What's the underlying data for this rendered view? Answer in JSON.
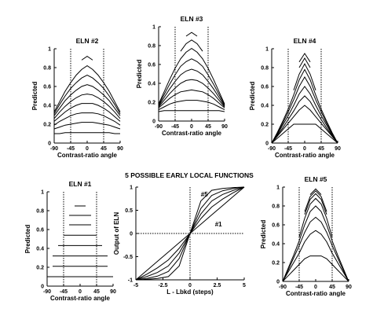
{
  "figure_title": "5 POSSIBLE EARLY LOCAL FUNCTIONS",
  "chart_data": [
    {
      "id": "eln2",
      "type": "line",
      "title": "ELN #2",
      "xlabel": "Contrast-ratio angle",
      "ylabel": "Predicted",
      "xlim": [
        -90,
        90
      ],
      "ylim": [
        0,
        1
      ],
      "xticks": [
        "-90",
        "-45",
        "0",
        "45",
        "90"
      ],
      "yticks": [
        "0",
        "0.2",
        "0.4",
        "0.6",
        "0.8",
        "1"
      ],
      "vlines": [
        -45,
        45
      ],
      "x": [
        -90,
        -75,
        -60,
        -45,
        -30,
        -15,
        0,
        15,
        30,
        45,
        60,
        75,
        90
      ],
      "series": [
        {
          "values": [
            0.1,
            0.1,
            0.11,
            0.11,
            0.11,
            0.11,
            0.11,
            0.11,
            0.11,
            0.11,
            0.11,
            0.1,
            0.1
          ]
        },
        {
          "values": [
            0.15,
            0.17,
            0.19,
            0.2,
            0.21,
            0.22,
            0.22,
            0.22,
            0.21,
            0.2,
            0.19,
            0.17,
            0.15
          ]
        },
        {
          "values": [
            0.19,
            0.23,
            0.26,
            0.29,
            0.31,
            0.32,
            0.32,
            0.32,
            0.31,
            0.29,
            0.26,
            0.23,
            0.19
          ]
        },
        {
          "values": [
            0.23,
            0.28,
            0.33,
            0.37,
            0.4,
            0.42,
            0.42,
            0.42,
            0.4,
            0.37,
            0.33,
            0.28,
            0.23
          ]
        },
        {
          "values": [
            0.26,
            0.33,
            0.39,
            0.44,
            0.48,
            0.51,
            0.52,
            0.51,
            0.48,
            0.44,
            0.39,
            0.33,
            0.26
          ]
        },
        {
          "values": [
            0.29,
            0.37,
            0.45,
            0.51,
            0.56,
            0.6,
            0.62,
            0.6,
            0.56,
            0.51,
            0.45,
            0.37,
            0.29
          ]
        },
        {
          "values": [
            0.31,
            0.41,
            0.5,
            0.58,
            0.64,
            0.69,
            0.72,
            0.69,
            0.64,
            0.58,
            0.5,
            0.41,
            0.31
          ]
        },
        {
          "values": [
            0.33,
            0.44,
            0.55,
            0.64,
            0.72,
            0.78,
            0.82,
            0.78,
            0.72,
            0.64,
            0.55,
            0.44,
            0.33
          ]
        },
        {
          "values": [
            null,
            null,
            null,
            null,
            null,
            0.88,
            0.92,
            0.88,
            null,
            null,
            null,
            null,
            null
          ]
        }
      ]
    },
    {
      "id": "eln3",
      "type": "line",
      "title": "ELN #3",
      "xlabel": "Contrast-ratio angle",
      "ylabel": "Predicted",
      "xlim": [
        -90,
        90
      ],
      "ylim": [
        0,
        1
      ],
      "xticks": [
        "-90",
        "-45",
        "0",
        "45",
        "90"
      ],
      "yticks": [
        "0",
        "0.2",
        "0.4",
        "0.6",
        "0.8",
        "1"
      ],
      "vlines": [
        -45,
        45
      ],
      "x": [
        -90,
        -75,
        -60,
        -45,
        -30,
        -15,
        0,
        15,
        30,
        45,
        60,
        75,
        90
      ],
      "series": [
        {
          "values": [
            0.1,
            0.11,
            0.11,
            0.11,
            0.11,
            0.11,
            0.11,
            0.11,
            0.11,
            0.11,
            0.11,
            0.11,
            0.1
          ]
        },
        {
          "values": [
            0.12,
            0.15,
            0.18,
            0.2,
            0.21,
            0.22,
            0.22,
            0.22,
            0.21,
            0.2,
            0.18,
            0.15,
            0.12
          ]
        },
        {
          "values": [
            0.14,
            0.19,
            0.24,
            0.28,
            0.31,
            0.32,
            0.33,
            0.32,
            0.31,
            0.28,
            0.24,
            0.19,
            0.14
          ]
        },
        {
          "values": [
            0.15,
            0.22,
            0.29,
            0.35,
            0.4,
            0.43,
            0.44,
            0.43,
            0.4,
            0.35,
            0.29,
            0.22,
            0.15
          ]
        },
        {
          "values": [
            0.16,
            0.25,
            0.34,
            0.42,
            0.49,
            0.53,
            0.55,
            0.53,
            0.49,
            0.42,
            0.34,
            0.25,
            0.16
          ]
        },
        {
          "values": [
            0.17,
            0.28,
            0.39,
            0.49,
            0.58,
            0.63,
            0.66,
            0.63,
            0.58,
            0.49,
            0.39,
            0.28,
            0.17
          ]
        },
        {
          "values": [
            0.18,
            0.31,
            0.44,
            0.56,
            0.66,
            0.73,
            0.77,
            0.73,
            0.66,
            0.56,
            0.44,
            0.31,
            0.18
          ]
        },
        {
          "values": [
            null,
            null,
            null,
            null,
            0.74,
            0.82,
            0.86,
            0.82,
            0.74,
            null,
            null,
            null,
            null
          ]
        },
        {
          "values": [
            null,
            null,
            null,
            null,
            null,
            0.9,
            0.94,
            0.9,
            null,
            null,
            null,
            null,
            null
          ]
        }
      ]
    },
    {
      "id": "eln4",
      "type": "line",
      "title": "ELN #4",
      "xlabel": "Contrast-ratio angle",
      "ylabel": "Predicted",
      "xlim": [
        -90,
        90
      ],
      "ylim": [
        0,
        1
      ],
      "xticks": [
        "-90",
        "-45",
        "0",
        "45",
        "90"
      ],
      "yticks": [
        "0",
        "0.2",
        "0.4",
        "0.6",
        "0.8",
        "1"
      ],
      "vlines": [
        -45,
        45
      ],
      "x": [
        -90,
        -75,
        -60,
        -45,
        -30,
        -15,
        0,
        15,
        30,
        45,
        60,
        75,
        90
      ],
      "series": [
        {
          "values": [
            0.0,
            0.05,
            0.1,
            0.15,
            0.2,
            0.2,
            0.2,
            0.2,
            0.2,
            0.15,
            0.1,
            0.05,
            0.0
          ]
        },
        {
          "values": [
            0.0,
            0.07,
            0.14,
            0.21,
            0.28,
            0.35,
            0.4,
            0.35,
            0.28,
            0.21,
            0.14,
            0.07,
            0.0
          ]
        },
        {
          "values": [
            0.0,
            0.08,
            0.16,
            0.25,
            0.34,
            0.44,
            0.5,
            0.44,
            0.34,
            0.25,
            0.16,
            0.08,
            0.0
          ]
        },
        {
          "values": [
            0.0,
            0.09,
            0.19,
            0.29,
            0.4,
            0.52,
            0.6,
            0.52,
            0.4,
            0.29,
            0.19,
            0.09,
            0.0
          ]
        },
        {
          "values": [
            0.0,
            0.1,
            0.21,
            0.33,
            0.46,
            0.6,
            0.7,
            0.6,
            0.46,
            0.33,
            0.21,
            0.1,
            0.0
          ]
        },
        {
          "values": [
            0.0,
            0.11,
            0.23,
            0.36,
            0.51,
            0.67,
            0.78,
            0.67,
            0.51,
            0.36,
            0.23,
            0.11,
            0.0
          ]
        },
        {
          "values": [
            null,
            null,
            null,
            null,
            0.56,
            0.73,
            0.84,
            0.73,
            0.56,
            null,
            null,
            null,
            null
          ]
        },
        {
          "values": [
            null,
            null,
            null,
            null,
            null,
            0.8,
            0.9,
            0.8,
            null,
            null,
            null,
            null,
            null
          ]
        },
        {
          "values": [
            null,
            null,
            null,
            null,
            null,
            0.86,
            0.95,
            0.86,
            null,
            null,
            null,
            null,
            null
          ]
        }
      ]
    },
    {
      "id": "eln1",
      "type": "line",
      "title": "ELN #1",
      "xlabel": "Contrast-ratio angle",
      "ylabel": "Predicted",
      "xlim": [
        -90,
        90
      ],
      "ylim": [
        0,
        1
      ],
      "xticks": [
        "-90",
        "-45",
        "0",
        "45",
        "90"
      ],
      "yticks": [
        "0",
        "0.2",
        "0.4",
        "0.6",
        "0.8",
        "1"
      ],
      "vlines": [
        -45,
        45
      ],
      "x": [
        -90,
        -75,
        -60,
        -45,
        -30,
        -15,
        0,
        15,
        30,
        45,
        60,
        75,
        90
      ],
      "series": [
        {
          "values": [
            0.1,
            0.1,
            0.1,
            0.1,
            0.1,
            0.1,
            0.1,
            0.1,
            0.1,
            0.1,
            0.1,
            0.1,
            0.1
          ]
        },
        {
          "values": [
            null,
            0.21,
            0.21,
            0.21,
            0.21,
            0.21,
            0.21,
            0.21,
            0.21,
            0.21,
            0.21,
            0.21,
            null
          ]
        },
        {
          "values": [
            null,
            0.32,
            0.32,
            0.32,
            0.32,
            0.32,
            0.32,
            0.32,
            0.32,
            0.32,
            0.32,
            0.32,
            null
          ]
        },
        {
          "values": [
            null,
            null,
            0.43,
            0.43,
            0.43,
            0.43,
            0.43,
            0.43,
            0.43,
            0.43,
            0.43,
            null,
            null
          ]
        },
        {
          "values": [
            null,
            null,
            null,
            0.54,
            0.54,
            0.54,
            0.54,
            0.54,
            0.54,
            0.54,
            null,
            null,
            null
          ]
        },
        {
          "values": [
            null,
            null,
            null,
            null,
            0.65,
            0.65,
            0.65,
            0.65,
            0.65,
            null,
            null,
            null,
            null
          ]
        },
        {
          "values": [
            null,
            null,
            null,
            null,
            0.75,
            0.75,
            0.75,
            0.75,
            0.75,
            null,
            null,
            null,
            null
          ]
        },
        {
          "values": [
            null,
            null,
            null,
            null,
            null,
            0.85,
            0.85,
            0.85,
            null,
            null,
            null,
            null,
            null
          ]
        },
        {
          "values": [
            null,
            null,
            null,
            null,
            null,
            null,
            0.95,
            null,
            null,
            null,
            null,
            null,
            null
          ]
        }
      ]
    },
    {
      "id": "functions",
      "type": "line",
      "title": "",
      "xlabel": "L - Lbkd (steps)",
      "ylabel": "Output of ELN",
      "xlim": [
        -5,
        5
      ],
      "ylim": [
        -1,
        1
      ],
      "xticks": [
        "-5",
        "-2.5",
        "0",
        "2.5",
        "5"
      ],
      "yticks": [
        "-1",
        "-0.5",
        "0",
        "0.5",
        "1"
      ],
      "hlines": [
        0
      ],
      "vlines": [
        0
      ],
      "annotations": [
        {
          "text": "#5",
          "x": 1.0,
          "y": 0.8
        },
        {
          "text": "#1",
          "x": 2.3,
          "y": 0.15
        }
      ],
      "x": [
        -5,
        -4,
        -3,
        -2,
        -1,
        0,
        1,
        2,
        3,
        4,
        5
      ],
      "series": [
        {
          "values": [
            -1.0,
            -0.8,
            -0.6,
            -0.4,
            -0.2,
            0.0,
            0.2,
            0.4,
            0.6,
            0.8,
            1.0
          ]
        },
        {
          "values": [
            -1.0,
            -0.88,
            -0.74,
            -0.57,
            -0.32,
            0.0,
            0.32,
            0.57,
            0.74,
            0.88,
            1.0
          ]
        },
        {
          "values": [
            -1.0,
            -0.93,
            -0.84,
            -0.7,
            -0.42,
            0.0,
            0.42,
            0.7,
            0.84,
            0.93,
            1.0
          ]
        },
        {
          "values": [
            -1.0,
            -0.97,
            -0.92,
            -0.82,
            -0.54,
            0.0,
            0.54,
            0.82,
            0.92,
            0.97,
            1.0
          ]
        },
        {
          "values": [
            -1.0,
            -0.99,
            -0.97,
            -0.93,
            -0.7,
            0.0,
            0.7,
            0.93,
            0.97,
            0.99,
            1.0
          ]
        }
      ]
    },
    {
      "id": "eln5",
      "type": "line",
      "title": "ELN #5",
      "xlabel": "Contrast-ratio angle",
      "ylabel": "Predicted",
      "xlim": [
        -90,
        90
      ],
      "ylim": [
        0,
        1
      ],
      "xticks": [
        "-90",
        "-45",
        "0",
        "45",
        "90"
      ],
      "yticks": [
        "0",
        "0.2",
        "0.4",
        "0.6",
        "0.8",
        "1"
      ],
      "vlines": [
        -45,
        45
      ],
      "x": [
        -90,
        -75,
        -60,
        -45,
        -30,
        -15,
        0,
        15,
        30,
        45,
        60,
        75,
        90
      ],
      "series": [
        {
          "values": [
            0.0,
            0.06,
            0.12,
            0.18,
            0.24,
            0.27,
            0.27,
            0.27,
            0.24,
            0.18,
            0.12,
            0.06,
            0.0
          ]
        },
        {
          "values": [
            0.0,
            0.1,
            0.2,
            0.3,
            0.42,
            0.5,
            0.54,
            0.5,
            0.42,
            0.3,
            0.2,
            0.1,
            0.0
          ]
        },
        {
          "values": [
            0.0,
            0.12,
            0.25,
            0.38,
            0.52,
            0.63,
            0.68,
            0.63,
            0.52,
            0.38,
            0.25,
            0.12,
            0.0
          ]
        },
        {
          "values": [
            0.0,
            0.14,
            0.28,
            0.43,
            0.6,
            0.74,
            0.8,
            0.74,
            0.6,
            0.43,
            0.28,
            0.14,
            0.0
          ]
        },
        {
          "values": [
            null,
            null,
            null,
            0.47,
            0.67,
            0.82,
            0.88,
            0.82,
            0.67,
            0.47,
            null,
            null,
            null
          ]
        },
        {
          "values": [
            null,
            null,
            null,
            null,
            0.71,
            0.87,
            0.93,
            0.87,
            0.71,
            null,
            null,
            null,
            null
          ]
        },
        {
          "values": [
            null,
            null,
            null,
            null,
            0.74,
            0.9,
            0.96,
            0.9,
            0.74,
            null,
            null,
            null,
            null
          ]
        },
        {
          "values": [
            null,
            null,
            null,
            null,
            null,
            0.92,
            0.98,
            0.92,
            null,
            null,
            null,
            null,
            null
          ]
        }
      ]
    }
  ]
}
